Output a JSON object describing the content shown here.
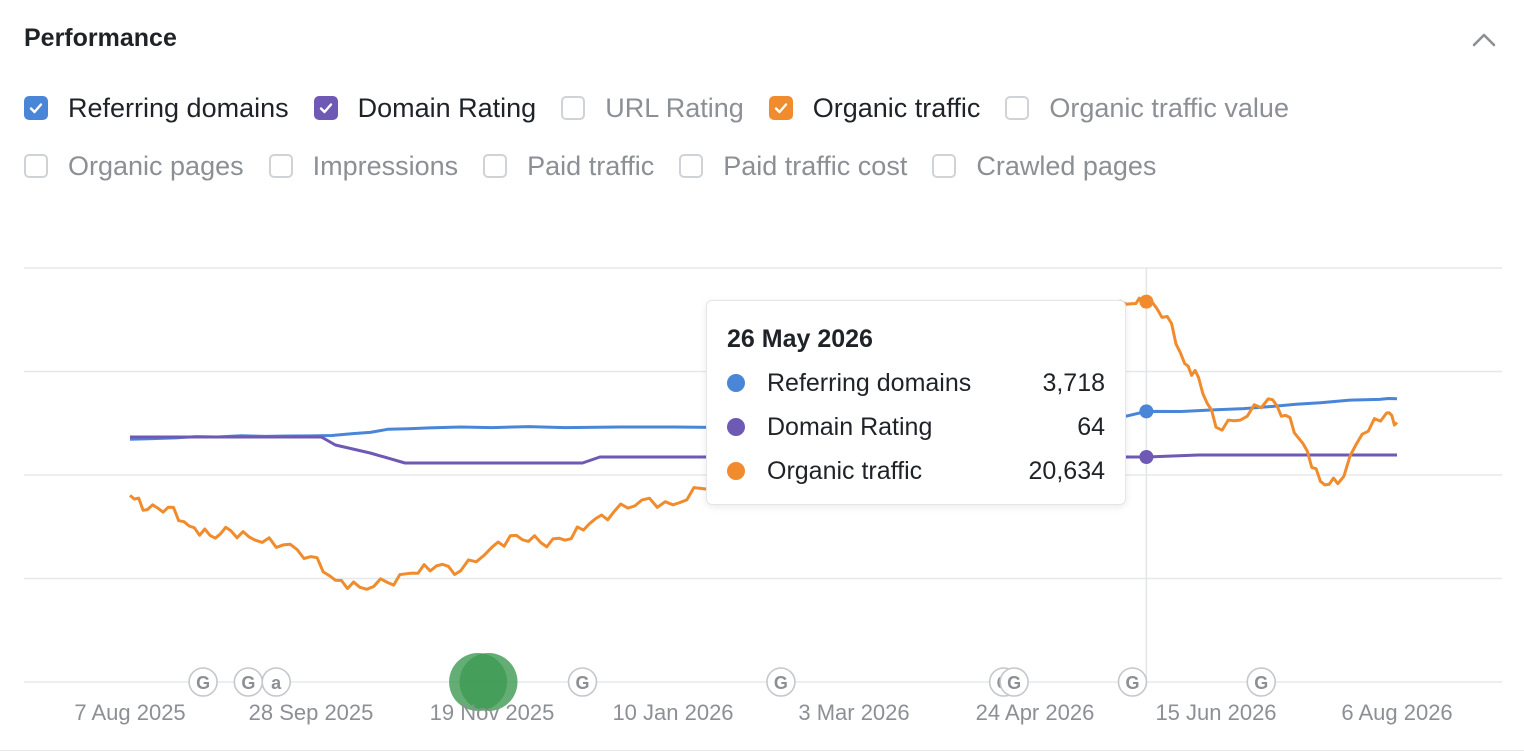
{
  "panel": {
    "title": "Performance"
  },
  "filters": {
    "row1": [
      {
        "label": "Referring domains",
        "checked": true,
        "color": "#4a86d8"
      },
      {
        "label": "Domain Rating",
        "checked": true,
        "color": "#6e59b5"
      },
      {
        "label": "URL Rating",
        "checked": false,
        "color": "#cfd3d8"
      },
      {
        "label": "Organic traffic",
        "checked": true,
        "color": "#f08c2e"
      },
      {
        "label": "Organic traffic value",
        "checked": false,
        "color": "#cfd3d8"
      }
    ],
    "row2": [
      {
        "label": "Organic pages",
        "checked": false
      },
      {
        "label": "Impressions",
        "checked": false
      },
      {
        "label": "Paid traffic",
        "checked": false
      },
      {
        "label": "Paid traffic cost",
        "checked": false
      },
      {
        "label": "Crawled pages",
        "checked": false
      }
    ]
  },
  "tooltip": {
    "date": "26 May 2026",
    "rows": [
      {
        "name": "Referring domains",
        "value": "3,718",
        "color": "#4a86d8"
      },
      {
        "name": "Domain Rating",
        "value": "64",
        "color": "#6e59b5"
      },
      {
        "name": "Organic traffic",
        "value": "20,634",
        "color": "#f08c2e"
      }
    ]
  },
  "chart_data": {
    "type": "line",
    "x_tick_labels": [
      "7 Aug 2025",
      "28 Sep 2025",
      "19 Nov 2025",
      "10 Jan 2026",
      "3 Mar 2026",
      "24 Apr 2026",
      "15 Jun 2026",
      "6 Aug 2026"
    ],
    "x_range": [
      "2025-08-07",
      "2026-08-06"
    ],
    "gridlines": 5,
    "hover_date": "2026-05-26",
    "series": [
      {
        "name": "Referring domains",
        "color": "#4a86d8",
        "x": [
          "2025-08-07",
          "2025-08-20",
          "2025-09-01",
          "2025-09-15",
          "2025-09-28",
          "2025-10-10",
          "2025-10-20",
          "2025-11-01",
          "2025-11-19",
          "2025-12-10",
          "2026-01-10",
          "2026-02-01",
          "2026-02-20",
          "2026-03-03",
          "2026-04-01",
          "2026-04-24",
          "2026-05-15",
          "2026-05-26",
          "2026-06-15",
          "2026-07-01",
          "2026-07-15",
          "2026-08-01",
          "2026-08-06"
        ],
        "y": [
          3620,
          3625,
          3628,
          3630,
          3632,
          3640,
          3655,
          3660,
          3661,
          3661,
          3663,
          3665,
          3660,
          3658,
          3660,
          3662,
          3690,
          3718,
          3724,
          3735,
          3748,
          3760,
          3762
        ]
      },
      {
        "name": "Domain Rating",
        "color": "#6e59b5",
        "x": [
          "2025-08-07",
          "2025-10-01",
          "2025-10-05",
          "2025-10-15",
          "2025-10-25",
          "2025-11-01",
          "2025-12-15",
          "2025-12-20",
          "2026-02-05",
          "2026-02-10",
          "2026-03-03",
          "2026-05-20",
          "2026-05-26",
          "2026-06-10",
          "2026-07-01",
          "2026-08-06"
        ],
        "y": [
          65,
          65,
          64.6,
          64.2,
          63.7,
          63.7,
          63.7,
          64.0,
          64.0,
          64.0,
          64.0,
          64.0,
          64.0,
          64.1,
          64.1,
          64.1
        ]
      },
      {
        "name": "Organic traffic",
        "color": "#f08c2e",
        "x": [
          "2025-08-07",
          "2025-08-12",
          "2025-08-18",
          "2025-08-24",
          "2025-08-30",
          "2025-09-05",
          "2025-09-12",
          "2025-09-20",
          "2025-09-28",
          "2025-10-05",
          "2025-10-12",
          "2025-10-20",
          "2025-10-27",
          "2025-11-03",
          "2025-11-10",
          "2025-11-19",
          "2025-11-26",
          "2025-12-03",
          "2025-12-10",
          "2025-12-17",
          "2025-12-24",
          "2026-01-01",
          "2026-01-10",
          "2026-01-18",
          "2026-01-26",
          "2026-02-03",
          "2026-02-10",
          "2026-02-18",
          "2026-02-25",
          "2026-03-03",
          "2026-03-12",
          "2026-03-20",
          "2026-04-01",
          "2026-04-12",
          "2026-04-24",
          "2026-05-05",
          "2026-05-15",
          "2026-05-22",
          "2026-05-26",
          "2026-06-01",
          "2026-06-06",
          "2026-06-10",
          "2026-06-15",
          "2026-06-22",
          "2026-06-30",
          "2026-07-05",
          "2026-07-10",
          "2026-07-15",
          "2026-07-20",
          "2026-07-27",
          "2026-08-03",
          "2026-08-06"
        ],
        "y": [
          12400,
          11800,
          11900,
          11100,
          10700,
          10900,
          10500,
          10300,
          9800,
          8800,
          8500,
          8700,
          9100,
          9400,
          9200,
          10200,
          10700,
          10400,
          10500,
          11200,
          11700,
          12200,
          12000,
          12700,
          13400,
          14000,
          15200,
          16600,
          17800,
          18600,
          19200,
          19600,
          20000,
          19800,
          19700,
          20100,
          20400,
          20550,
          20634,
          20000,
          18000,
          17400,
          15300,
          15600,
          16500,
          15800,
          14600,
          13000,
          12900,
          15000,
          15900,
          15500
        ]
      }
    ]
  },
  "event_markers": {
    "labels": [
      "G",
      "G",
      "a",
      "G",
      "G",
      "G",
      "G",
      "G",
      "G"
    ],
    "dates": [
      "2025-08-28",
      "2025-09-10",
      "2025-09-18",
      "2025-12-15",
      "2026-02-10",
      "2026-04-15",
      "2026-04-18",
      "2026-05-22",
      "2026-06-28"
    ],
    "big_marker_dates": [
      "2025-11-15",
      "2025-11-18"
    ],
    "big_marker_color": "#3d9a52"
  }
}
